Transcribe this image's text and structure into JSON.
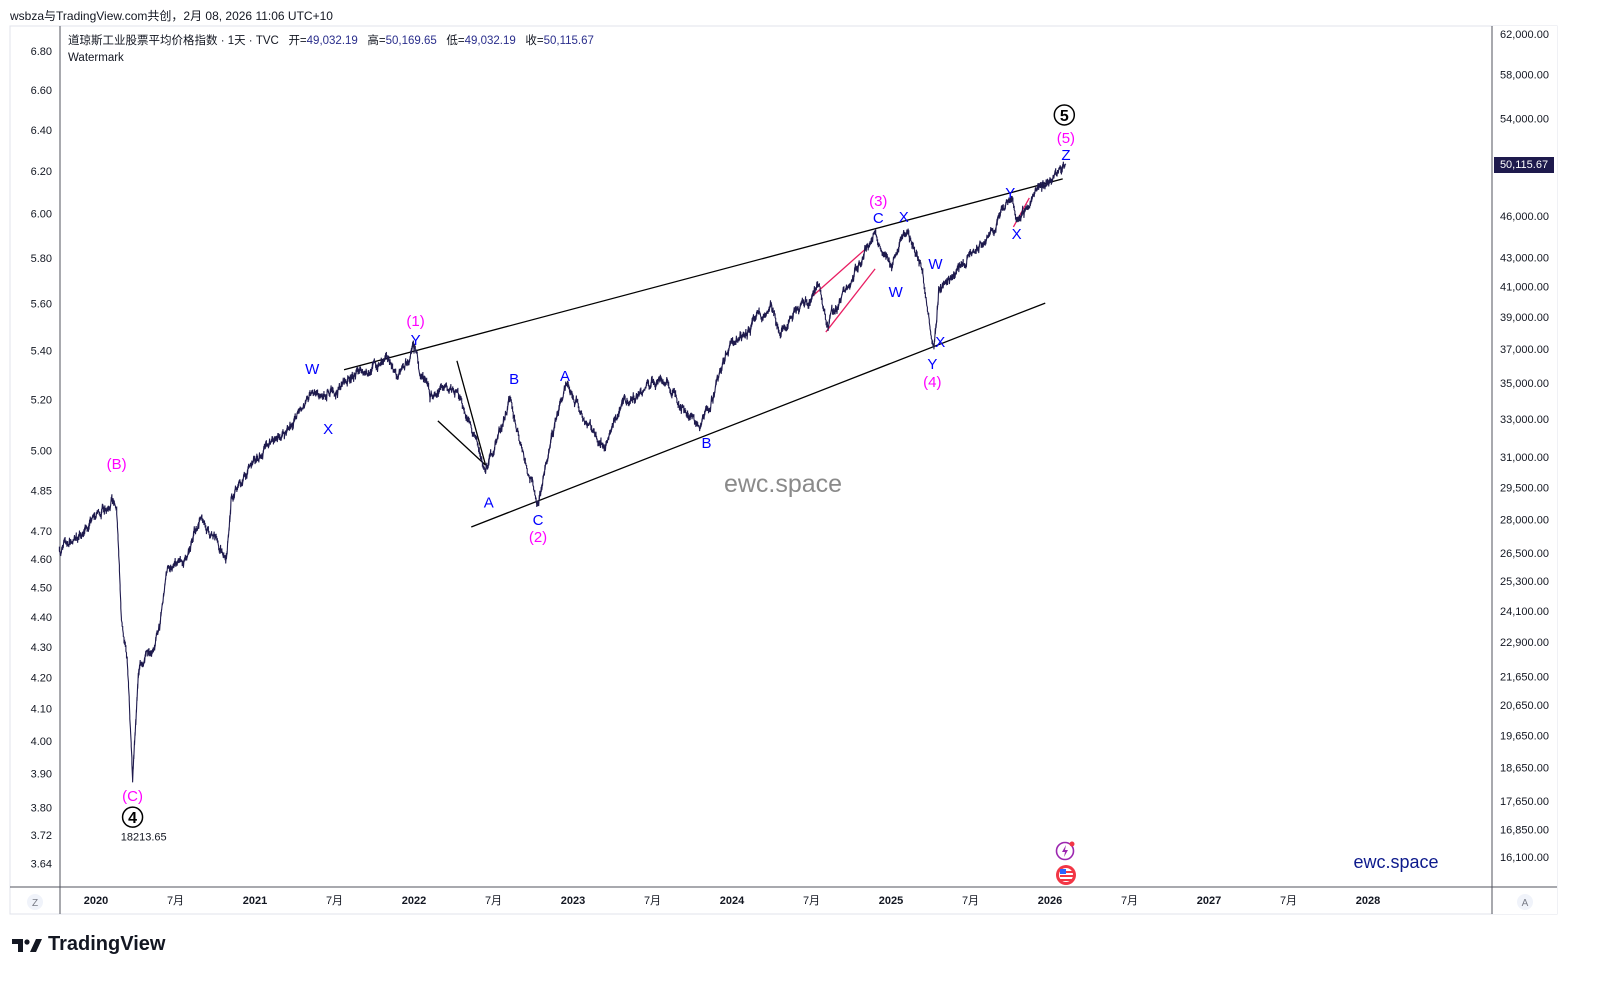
{
  "header": {
    "credit": "wsbza与TradingView.com共创，2月 08, 2026 11:06 UTC+10"
  },
  "legend": {
    "symbol": "道琼斯工业股票平均价格指数 · 1天 · TVC",
    "open_label": "开=",
    "open": "49,032.19",
    "high_label": "高=",
    "high": "50,169.65",
    "low_label": "低=",
    "low": "49,032.19",
    "close_label": "收=",
    "close": "50,115.67",
    "watermark_label": "Watermark"
  },
  "last_price_tag": "50,115.67",
  "watermark": "ewc.space",
  "brand_text": "ewc.space",
  "footer": {
    "logo_text": "TradingView"
  },
  "axis_buttons": {
    "left": "Z",
    "right": "A"
  },
  "colors": {
    "price": "#1e1a4d",
    "wave_major": "#ff00ff",
    "wave_minor": "#0000ff",
    "wave_cycle": "#000000",
    "channel": "#000000",
    "red_lines": "#e91e63",
    "brand": "#0d1a8c"
  },
  "chart_data": {
    "type": "line",
    "title": "道琼斯工业股票平均价格指数 · 1天 · TVC",
    "scale": "log",
    "ylim": [
      15600,
      63000
    ],
    "xlim": [
      2019.77,
      2028.8
    ],
    "right_ticks": [
      "62,000.00",
      "58,000.00",
      "54,000.00",
      "46,000.00",
      "43,000.00",
      "41,000.00",
      "39,000.00",
      "37,000.00",
      "35,000.00",
      "33,000.00",
      "31,000.00",
      "29,500.00",
      "28,000.00",
      "26,500.00",
      "25,300.00",
      "24,100.00",
      "22,900.00",
      "21,650.00",
      "20,650.00",
      "19,650.00",
      "18,650.00",
      "17,650.00",
      "16,850.00",
      "16,100.00"
    ],
    "left_ticks": [
      "6.80",
      "6.60",
      "6.40",
      "6.20",
      "6.00",
      "5.80",
      "5.60",
      "5.40",
      "5.20",
      "5.00",
      "4.85",
      "4.70",
      "4.60",
      "4.50",
      "4.40",
      "4.30",
      "4.20",
      "4.10",
      "4.00",
      "3.90",
      "3.80",
      "3.72",
      "3.64"
    ],
    "x_ticks": [
      {
        "d": 2020.0,
        "label": "2020",
        "bold": true
      },
      {
        "d": 2020.5,
        "label": "7月"
      },
      {
        "d": 2021.0,
        "label": "2021",
        "bold": true
      },
      {
        "d": 2021.5,
        "label": "7月"
      },
      {
        "d": 2022.0,
        "label": "2022",
        "bold": true
      },
      {
        "d": 2022.5,
        "label": "7月"
      },
      {
        "d": 2023.0,
        "label": "2023",
        "bold": true
      },
      {
        "d": 2023.5,
        "label": "7月"
      },
      {
        "d": 2024.0,
        "label": "2024",
        "bold": true
      },
      {
        "d": 2024.5,
        "label": "7月"
      },
      {
        "d": 2025.0,
        "label": "2025",
        "bold": true
      },
      {
        "d": 2025.5,
        "label": "7月"
      },
      {
        "d": 2026.0,
        "label": "2026",
        "bold": true
      },
      {
        "d": 2026.5,
        "label": "7月"
      },
      {
        "d": 2027.0,
        "label": "2027",
        "bold": true
      },
      {
        "d": 2027.5,
        "label": "7月"
      },
      {
        "d": 2028.0,
        "label": "2028",
        "bold": true
      }
    ],
    "price_path": [
      [
        2019.77,
        26640
      ],
      [
        2019.9,
        27300
      ],
      [
        2020.1,
        29000
      ],
      [
        2020.13,
        28400
      ],
      [
        2020.16,
        23750
      ],
      [
        2020.2,
        21800
      ],
      [
        2020.23,
        18214
      ],
      [
        2020.27,
        21800
      ],
      [
        2020.4,
        23350
      ],
      [
        2020.45,
        25900
      ],
      [
        2020.55,
        25900
      ],
      [
        2020.65,
        28000
      ],
      [
        2020.82,
        26350
      ],
      [
        2020.85,
        29000
      ],
      [
        2021.0,
        30800
      ],
      [
        2021.2,
        32400
      ],
      [
        2021.35,
        34300
      ],
      [
        2021.45,
        34000
      ],
      [
        2021.6,
        35400
      ],
      [
        2021.85,
        36300
      ],
      [
        2021.9,
        35300
      ],
      [
        2022.0,
        36800
      ],
      [
        2022.1,
        34050
      ],
      [
        2022.2,
        34900
      ],
      [
        2022.3,
        34000
      ],
      [
        2022.45,
        30200
      ],
      [
        2022.6,
        34000
      ],
      [
        2022.78,
        28730
      ],
      [
        2022.9,
        33300
      ],
      [
        2022.95,
        34700
      ],
      [
        2023.2,
        31600
      ],
      [
        2023.3,
        33600
      ],
      [
        2023.55,
        35400
      ],
      [
        2023.8,
        32500
      ],
      [
        2024.0,
        37500
      ],
      [
        2024.25,
        39500
      ],
      [
        2024.3,
        37900
      ],
      [
        2024.55,
        41100
      ],
      [
        2024.6,
        38500
      ],
      [
        2024.9,
        44900
      ],
      [
        2025.0,
        42300
      ],
      [
        2025.1,
        44900
      ],
      [
        2025.2,
        42000
      ],
      [
        2025.27,
        37200
      ],
      [
        2025.3,
        40800
      ],
      [
        2025.45,
        42500
      ],
      [
        2025.6,
        44200
      ],
      [
        2025.75,
        47200
      ],
      [
        2025.8,
        45700
      ],
      [
        2025.9,
        47600
      ],
      [
        2026.1,
        50115.67
      ]
    ],
    "low_annotation": {
      "text": "18213.65",
      "d": 2020.3,
      "p": 16650
    },
    "wave_labels": [
      {
        "text": "(B)",
        "d": 2020.13,
        "p": 30660,
        "c": "major"
      },
      {
        "text": "(C)",
        "d": 2020.23,
        "p": 17800,
        "c": "major"
      },
      {
        "text": "4",
        "d": 2020.23,
        "p": 17190,
        "c": "cycle"
      },
      {
        "text": "W",
        "d": 2021.36,
        "p": 35820,
        "c": "minor"
      },
      {
        "text": "X",
        "d": 2021.46,
        "p": 32460,
        "c": "minor"
      },
      {
        "text": "(1)",
        "d": 2022.01,
        "p": 38750,
        "c": "major"
      },
      {
        "text": "Y",
        "d": 2022.01,
        "p": 37570,
        "c": "minor"
      },
      {
        "text": "B",
        "d": 2022.63,
        "p": 35240,
        "c": "minor"
      },
      {
        "text": "A",
        "d": 2022.95,
        "p": 35410,
        "c": "minor"
      },
      {
        "text": "A",
        "d": 2022.47,
        "p": 28770,
        "c": "minor"
      },
      {
        "text": "C",
        "d": 2022.78,
        "p": 27970,
        "c": "minor"
      },
      {
        "text": "(2)",
        "d": 2022.78,
        "p": 27200,
        "c": "major"
      },
      {
        "text": "B",
        "d": 2023.84,
        "p": 31730,
        "c": "minor"
      },
      {
        "text": "(3)",
        "d": 2024.92,
        "p": 47160,
        "c": "major"
      },
      {
        "text": "C",
        "d": 2024.92,
        "p": 45880,
        "c": "minor"
      },
      {
        "text": "X",
        "d": 2025.08,
        "p": 45940,
        "c": "minor"
      },
      {
        "text": "W",
        "d": 2025.03,
        "p": 40630,
        "c": "minor"
      },
      {
        "text": "W",
        "d": 2025.28,
        "p": 42540,
        "c": "minor"
      },
      {
        "text": "X",
        "d": 2025.31,
        "p": 37440,
        "c": "minor"
      },
      {
        "text": "Y",
        "d": 2025.26,
        "p": 36110,
        "c": "minor"
      },
      {
        "text": "(4)",
        "d": 2025.26,
        "p": 35060,
        "c": "major"
      },
      {
        "text": "Y",
        "d": 2025.75,
        "p": 47780,
        "c": "minor"
      },
      {
        "text": "X",
        "d": 2025.79,
        "p": 44680,
        "c": "minor"
      },
      {
        "text": "Z",
        "d": 2026.1,
        "p": 50860,
        "c": "minor"
      },
      {
        "text": "(5)",
        "d": 2026.1,
        "p": 52290,
        "c": "major"
      },
      {
        "text": "5",
        "d": 2026.09,
        "p": 54300,
        "c": "cycle"
      }
    ],
    "trendlines": [
      {
        "name": "upper-channel-line",
        "c": "channel",
        "a": [
          2021.56,
          35770
        ],
        "b": [
          2026.08,
          48900
        ]
      },
      {
        "name": "lower-channel-line",
        "c": "channel",
        "a": [
          2022.36,
          27650
        ],
        "b": [
          2025.97,
          39900
        ]
      },
      {
        "name": "triangle-line-1",
        "c": "channel",
        "a": [
          2022.27,
          36300
        ],
        "b": [
          2022.45,
          30600
        ]
      },
      {
        "name": "triangle-line-2",
        "c": "channel",
        "a": [
          2022.15,
          32900
        ],
        "b": [
          2022.45,
          30600
        ]
      },
      {
        "name": "red-diagonal-upper",
        "c": "red_lines",
        "a": [
          2024.5,
          40300
        ],
        "b": [
          2024.84,
          43600
        ]
      },
      {
        "name": "red-diagonal-lower",
        "c": "red_lines",
        "a": [
          2024.59,
          38050
        ],
        "b": [
          2024.9,
          42200
        ]
      },
      {
        "name": "red-diagonal-small",
        "c": "red_lines",
        "a": [
          2025.77,
          45200
        ],
        "b": [
          2025.87,
          47400
        ]
      }
    ]
  }
}
